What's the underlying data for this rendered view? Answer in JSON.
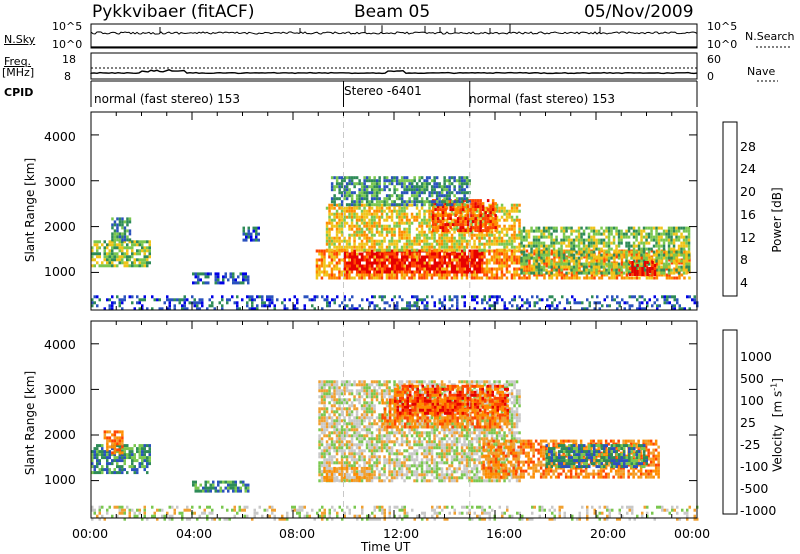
{
  "header": {
    "station": "Pykkvibaer (fitACF)",
    "beam": "Beam 05",
    "date": "05/Nov/2009"
  },
  "strips": {
    "nsky_label": "N.Sky",
    "nsky_ticks": [
      "10^5",
      "10^0"
    ],
    "nsearch_label": "N.Search",
    "nsearch_ticks": [
      "10^5",
      "10^0"
    ],
    "freq_label_1": "Freq.",
    "freq_label_2": "[MHz]",
    "freq_ticks": [
      "18",
      "8"
    ],
    "nave_label": "Nave",
    "nave_ticks": [
      "60",
      "0"
    ],
    "cpid_label": "CPID",
    "cpid_segments": [
      {
        "label": "normal (fast stereo) 153",
        "start_hour": 0,
        "end_hour": 10
      },
      {
        "label": "Stereo -6401",
        "start_hour": 10,
        "end_hour": 15
      },
      {
        "label": "normal (fast stereo) 153",
        "start_hour": 15,
        "end_hour": 24
      }
    ]
  },
  "chart_data": [
    {
      "type": "heatmap",
      "quantity": "Power",
      "ylabel": "Slant Range [km]",
      "ylim": [
        180,
        4500
      ],
      "yticks": [
        1000,
        2000,
        3000,
        4000
      ],
      "xlim": [
        0,
        24
      ],
      "colorbar_label": "Power [dB]",
      "colorbar_ticks": [
        "28",
        "24",
        "20",
        "16",
        "12",
        "8",
        "4"
      ],
      "colorbar_colors": [
        "#0000e6",
        "#2a52be",
        "#2e8b57",
        "#7ac74f",
        "#f0c419",
        "#ff8c00",
        "#ff4500",
        "#e60000"
      ],
      "regions": [
        {
          "start_hour": 0.0,
          "end_hour": 2.3,
          "range_min": 1150,
          "range_max": 1700,
          "level": 3
        },
        {
          "start_hour": 0.8,
          "end_hour": 1.5,
          "range_min": 1700,
          "range_max": 2200,
          "level": 2
        },
        {
          "start_hour": 4.0,
          "end_hour": 6.3,
          "range_min": 750,
          "range_max": 1000,
          "level": 1
        },
        {
          "start_hour": 6.0,
          "end_hour": 6.6,
          "range_min": 1700,
          "range_max": 2000,
          "level": 1
        },
        {
          "start_hour": 8.9,
          "end_hour": 23.7,
          "range_min": 900,
          "range_max": 1500,
          "level": 5
        },
        {
          "start_hour": 10.0,
          "end_hour": 15.5,
          "range_min": 1000,
          "range_max": 1500,
          "level": 7
        },
        {
          "start_hour": 9.3,
          "end_hour": 17.0,
          "range_min": 1500,
          "range_max": 2500,
          "level": 4
        },
        {
          "start_hour": 13.5,
          "end_hour": 16.0,
          "range_min": 1900,
          "range_max": 2600,
          "level": 6
        },
        {
          "start_hour": 9.5,
          "end_hour": 15.0,
          "range_min": 2500,
          "range_max": 3100,
          "level": 2
        },
        {
          "start_hour": 17.0,
          "end_hour": 23.7,
          "range_min": 1000,
          "range_max": 2000,
          "level": 3
        },
        {
          "start_hour": 21.3,
          "end_hour": 22.3,
          "range_min": 950,
          "range_max": 1250,
          "level": 7
        },
        {
          "start_hour": 0.0,
          "end_hour": 24.0,
          "range_min": 180,
          "range_max": 500,
          "level": 1
        }
      ]
    },
    {
      "type": "heatmap",
      "quantity": "Velocity",
      "ylabel": "Slant Range [km]",
      "ylim": [
        180,
        4500
      ],
      "yticks": [
        1000,
        2000,
        3000,
        4000
      ],
      "xlim": [
        0,
        24
      ],
      "xlabel": "Time UT",
      "xticks": [
        "00:00",
        "04:00",
        "08:00",
        "12:00",
        "16:00",
        "20:00",
        "00:00"
      ],
      "colorbar_label": "Velocity [m s^-1]",
      "colorbar_ticks": [
        "1000",
        "500",
        "100",
        "25",
        "-25",
        "-100",
        "-500",
        "-1000"
      ],
      "colorbar_colors": [
        "#e60000",
        "#ff4500",
        "#ff8c00",
        "#f0a030",
        "#c8c8c8",
        "#7ac74f",
        "#2e8b57",
        "#2a52be",
        "#1e3cb4"
      ],
      "regions": [
        {
          "start_hour": 0.0,
          "end_hour": 2.3,
          "range_min": 1150,
          "range_max": 1800,
          "level": 2
        },
        {
          "start_hour": 0.5,
          "end_hour": 1.2,
          "range_min": 1600,
          "range_max": 2100,
          "level": 6
        },
        {
          "start_hour": 4.0,
          "end_hour": 6.2,
          "range_min": 750,
          "range_max": 1000,
          "level": 2
        },
        {
          "start_hour": 9.0,
          "end_hour": 17.0,
          "range_min": 1000,
          "range_max": 3200,
          "level": 4
        },
        {
          "start_hour": 9.1,
          "end_hour": 11.0,
          "range_min": 1000,
          "range_max": 1300,
          "level": 5
        },
        {
          "start_hour": 11.5,
          "end_hour": 16.5,
          "range_min": 2200,
          "range_max": 2800,
          "level": 6
        },
        {
          "start_hour": 12.0,
          "end_hour": 16.5,
          "range_min": 2500,
          "range_max": 3100,
          "level": 7
        },
        {
          "start_hour": 15.5,
          "end_hour": 22.5,
          "range_min": 1100,
          "range_max": 1900,
          "level": 6
        },
        {
          "start_hour": 18.0,
          "end_hour": 22.0,
          "range_min": 1300,
          "range_max": 1800,
          "level": 2
        },
        {
          "start_hour": 0.0,
          "end_hour": 24.0,
          "range_min": 180,
          "range_max": 450,
          "level": 4
        }
      ]
    }
  ],
  "axis": {
    "ylabel": "Slant Range [km]",
    "xlabel": "Time UT",
    "xticks": [
      "00:00",
      "04:00",
      "08:00",
      "12:00",
      "16:00",
      "20:00",
      "00:00"
    ],
    "yticks": [
      "1000",
      "2000",
      "3000",
      "4000"
    ]
  },
  "colorbars": {
    "power_label": "Power [dB]",
    "power_ticks": [
      "28",
      "24",
      "20",
      "16",
      "12",
      "8",
      "4"
    ],
    "velocity_label": "Velocity",
    "velocity_unit": "[m s",
    "velocity_exp": "-1",
    "velocity_close": "]",
    "velocity_ticks": [
      "1000",
      "500",
      "100",
      "25",
      "-25",
      "-100",
      "-500",
      "-1000"
    ]
  },
  "colors": {
    "frame": "#000000",
    "guide": "#c8c8c8",
    "power_scale": [
      "#0000e6",
      "#2a52be",
      "#2e8b57",
      "#7ac74f",
      "#f0c419",
      "#ff8c00",
      "#ff4500",
      "#e60000"
    ],
    "velocity_scale": [
      "#1e3cb4",
      "#2a52be",
      "#2e8b57",
      "#7ac74f",
      "#c8c8c8",
      "#f0a030",
      "#ff8c00",
      "#ff4500",
      "#e60000"
    ]
  }
}
